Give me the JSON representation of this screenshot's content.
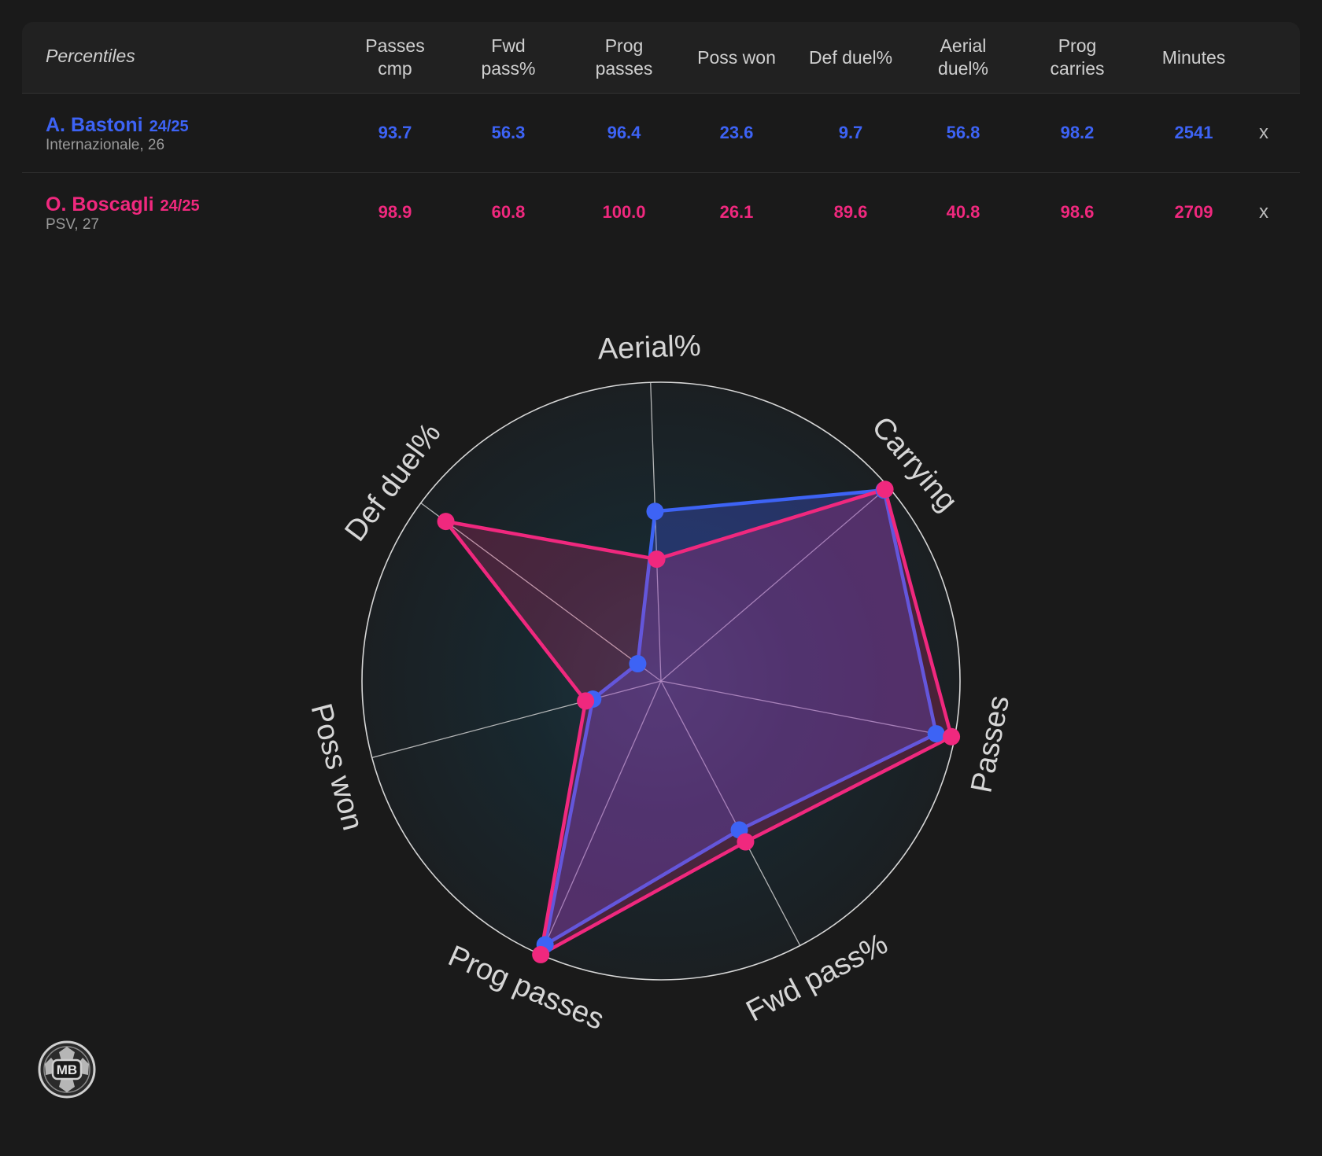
{
  "table": {
    "label": "Percentiles",
    "columns": [
      "Passes\ncmp",
      "Fwd\npass%",
      "Prog\npasses",
      "Poss won",
      "Def duel%",
      "Aerial\nduel%",
      "Prog\ncarries",
      "Minutes"
    ],
    "remove_label": "x",
    "rows": [
      {
        "name": "A. Bastoni",
        "season": "24/25",
        "sub": "Internazionale, 26",
        "values": [
          "93.7",
          "56.3",
          "96.4",
          "23.6",
          "9.7",
          "56.8",
          "98.2",
          "2541"
        ]
      },
      {
        "name": "O. Boscagli",
        "season": "24/25",
        "sub": "PSV, 27",
        "values": [
          "98.9",
          "60.8",
          "100.0",
          "26.1",
          "89.6",
          "40.8",
          "98.6",
          "2709"
        ]
      }
    ]
  },
  "colors": {
    "background": "#1a1a1a",
    "player1": "#3d63f5",
    "player2": "#f0287e"
  },
  "chart_data": {
    "type": "radar",
    "axes": [
      "Aerial%",
      "Carrying",
      "Passes",
      "Fwd pass%",
      "Prog passes",
      "Poss won",
      "Def duel%"
    ],
    "range": [
      0,
      100
    ],
    "series": [
      {
        "name": "A. Bastoni",
        "values": [
          56.8,
          98.2,
          93.7,
          56.3,
          96.4,
          23.6,
          9.7
        ]
      },
      {
        "name": "O. Boscagli",
        "values": [
          40.8,
          98.6,
          98.9,
          60.8,
          100.0,
          26.1,
          89.6
        ]
      }
    ],
    "grid": true,
    "legend": "table above chart"
  },
  "logo": {
    "text": "MB",
    "icon": "club-badge-icon"
  }
}
